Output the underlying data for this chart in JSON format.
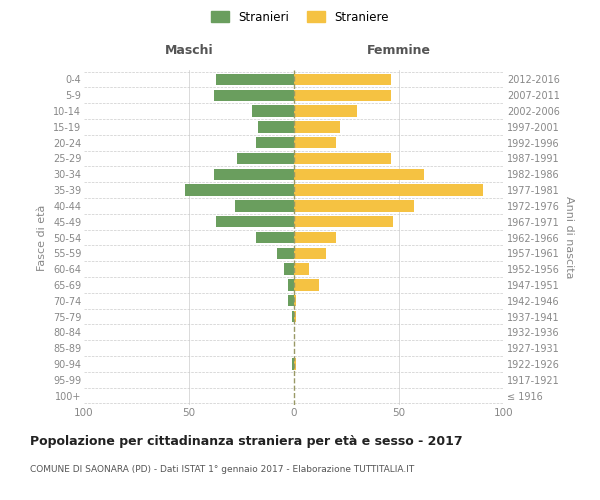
{
  "age_groups": [
    "100+",
    "95-99",
    "90-94",
    "85-89",
    "80-84",
    "75-79",
    "70-74",
    "65-69",
    "60-64",
    "55-59",
    "50-54",
    "45-49",
    "40-44",
    "35-39",
    "30-34",
    "25-29",
    "20-24",
    "15-19",
    "10-14",
    "5-9",
    "0-4"
  ],
  "birth_years": [
    "≤ 1916",
    "1917-1921",
    "1922-1926",
    "1927-1931",
    "1932-1936",
    "1937-1941",
    "1942-1946",
    "1947-1951",
    "1952-1956",
    "1957-1961",
    "1962-1966",
    "1967-1971",
    "1972-1976",
    "1977-1981",
    "1982-1986",
    "1987-1991",
    "1992-1996",
    "1997-2001",
    "2002-2006",
    "2007-2011",
    "2012-2016"
  ],
  "maschi": [
    0,
    0,
    1,
    0,
    0,
    1,
    3,
    3,
    5,
    8,
    18,
    37,
    28,
    52,
    38,
    27,
    18,
    17,
    20,
    38,
    37
  ],
  "femmine": [
    0,
    0,
    1,
    0,
    0,
    1,
    1,
    12,
    7,
    15,
    20,
    47,
    57,
    90,
    62,
    46,
    20,
    22,
    30,
    46,
    46
  ],
  "male_color": "#6a9e5e",
  "female_color": "#f5c242",
  "center_line_color": "#999966",
  "grid_color": "#cccccc",
  "tick_label_color": "#888888",
  "header_color": "#555555",
  "title": "Popolazione per cittadinanza straniera per età e sesso - 2017",
  "subtitle": "COMUNE DI SAONARA (PD) - Dati ISTAT 1° gennaio 2017 - Elaborazione TUTTITALIA.IT",
  "ylabel_left": "Fasce di età",
  "ylabel_right": "Anni di nascita",
  "col_header_left": "Maschi",
  "col_header_right": "Femmine",
  "legend_stranieri": "Stranieri",
  "legend_straniere": "Straniere",
  "xlim": 100,
  "background_color": "#ffffff"
}
